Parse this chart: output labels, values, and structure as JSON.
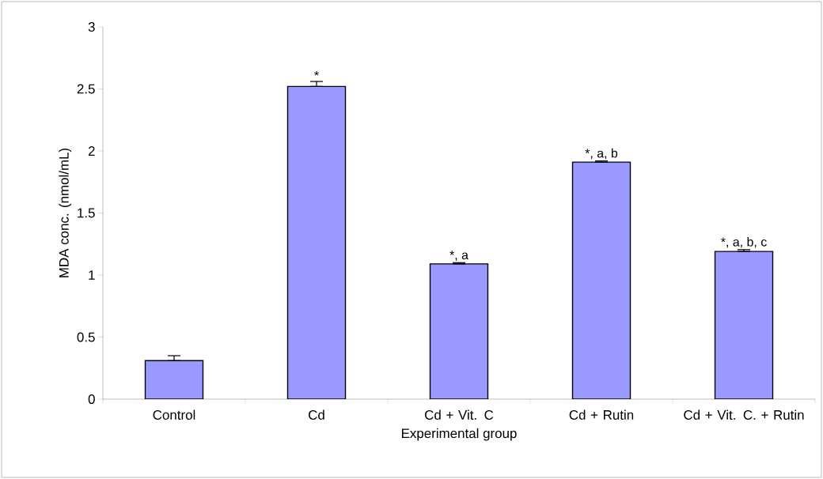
{
  "chart_data": {
    "type": "bar",
    "xlabel": "Experimental group",
    "ylabel": "MDA conc. (nmol/mL)",
    "categories": [
      "Control",
      "Cd",
      "Cd + Vit. C",
      "Cd + Rutin",
      "Cd + Vit. C. + Rutin"
    ],
    "values": [
      0.31,
      2.52,
      1.09,
      1.91,
      1.19
    ],
    "errors": [
      [
        0.31,
        0.35
      ],
      [
        2.52,
        2.56
      ],
      [
        1.09,
        1.1
      ],
      [
        1.91,
        1.92
      ],
      [
        1.19,
        1.205
      ]
    ],
    "color": "#9999ff",
    "ylim": [
      0,
      3
    ],
    "yticks": [
      0,
      0.5,
      1,
      1.5,
      2,
      2.5,
      3
    ],
    "grid": false,
    "annotations": [
      {
        "text": "*",
        "x": "Cd",
        "y": 2.56
      },
      {
        "text": "*, a",
        "x": "Cd + Vit. C",
        "y": 1.1
      },
      {
        "text": "*, a, b",
        "x": "Cd + Rutin",
        "y": 1.92
      },
      {
        "text": "*, a, b, c",
        "x": "Cd + Vit. C. + Rutin",
        "y": 1.205
      }
    ]
  }
}
